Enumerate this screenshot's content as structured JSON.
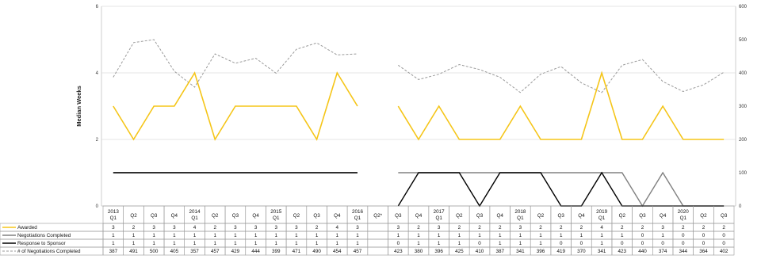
{
  "chart_data": {
    "type": "line",
    "ylabel": "Median Weeks",
    "ylim": [
      0,
      6
    ],
    "y_ticks": [
      "0",
      "2",
      "4",
      "6"
    ],
    "y2lim": [
      0,
      600
    ],
    "y2_ticks": [
      "0",
      "100",
      "200",
      "300",
      "400",
      "500",
      "600"
    ],
    "categories": [
      [
        "2013",
        "Q1"
      ],
      [
        "Q2"
      ],
      [
        "Q3"
      ],
      [
        "Q4"
      ],
      [
        "2014",
        "Q1"
      ],
      [
        "Q2"
      ],
      [
        "Q3"
      ],
      [
        "Q4"
      ],
      [
        "2015",
        "Q1"
      ],
      [
        "Q2"
      ],
      [
        "Q3"
      ],
      [
        "Q4"
      ],
      [
        "2016",
        "Q1"
      ],
      [
        "Q2*"
      ],
      [
        "Q3"
      ],
      [
        "Q4"
      ],
      [
        "2017",
        "Q1"
      ],
      [
        "Q2"
      ],
      [
        "Q3"
      ],
      [
        "Q4"
      ],
      [
        "2018",
        "Q1"
      ],
      [
        "Q2"
      ],
      [
        "Q3"
      ],
      [
        "Q4"
      ],
      [
        "2019",
        "Q1"
      ],
      [
        "Q2"
      ],
      [
        "Q3"
      ],
      [
        "Q4"
      ],
      [
        "2020",
        "Q1"
      ],
      [
        "Q2"
      ],
      [
        "Q3"
      ]
    ],
    "series": [
      {
        "name": "Awarded",
        "axis": "left",
        "color": "#F5C518",
        "style": "solid",
        "values": [
          "3",
          "2",
          "3",
          "3",
          "4",
          "2",
          "3",
          "3",
          "3",
          "3",
          "2",
          "4",
          "3",
          "",
          "3",
          "2",
          "3",
          "2",
          "2",
          "2",
          "3",
          "2",
          "2",
          "2",
          "4",
          "2",
          "2",
          "3",
          "2",
          "2",
          "2"
        ]
      },
      {
        "name": "Negotiations Completed",
        "axis": "left",
        "color": "#808080",
        "style": "solid",
        "values": [
          "1",
          "1",
          "1",
          "1",
          "1",
          "1",
          "1",
          "1",
          "1",
          "1",
          "1",
          "1",
          "1",
          "",
          "1",
          "1",
          "1",
          "1",
          "1",
          "1",
          "1",
          "1",
          "1",
          "1",
          "1",
          "1",
          "0",
          "1",
          "0",
          "0",
          "0"
        ]
      },
      {
        "name": "Response to Sponsor",
        "axis": "left",
        "color": "#000000",
        "style": "solid",
        "values": [
          "1",
          "1",
          "1",
          "1",
          "1",
          "1",
          "1",
          "1",
          "1",
          "1",
          "1",
          "1",
          "1",
          "",
          "0",
          "1",
          "1",
          "1",
          "0",
          "1",
          "1",
          "1",
          "0",
          "0",
          "1",
          "0",
          "0",
          "0",
          "0",
          "0",
          "0"
        ]
      },
      {
        "name": "# of Negotiations Completed",
        "axis": "right",
        "color": "#9a9a9a",
        "style": "dashed",
        "values": [
          "387",
          "491",
          "500",
          "405",
          "357",
          "457",
          "429",
          "444",
          "399",
          "471",
          "490",
          "454",
          "457",
          "",
          "423",
          "380",
          "396",
          "425",
          "410",
          "387",
          "341",
          "396",
          "419",
          "370",
          "341",
          "423",
          "440",
          "374",
          "344",
          "364",
          "402"
        ]
      }
    ]
  }
}
